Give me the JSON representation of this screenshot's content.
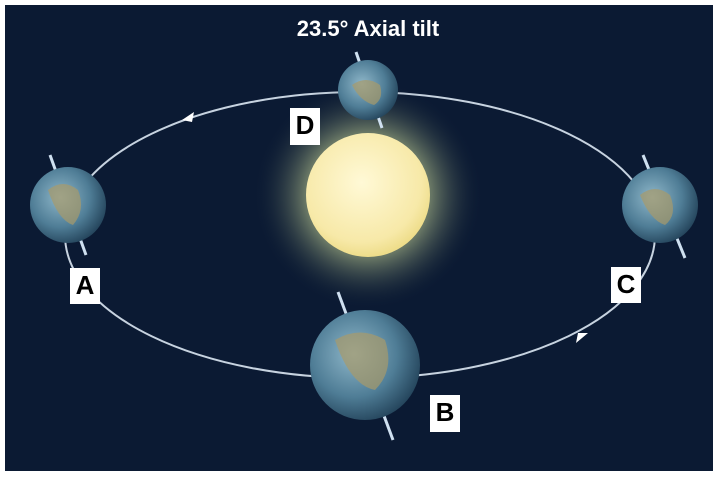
{
  "title": "23.5° Axial tilt",
  "earth_positions": [
    {
      "label": "A"
    },
    {
      "label": "B"
    },
    {
      "label": "C"
    },
    {
      "label": "D"
    }
  ]
}
